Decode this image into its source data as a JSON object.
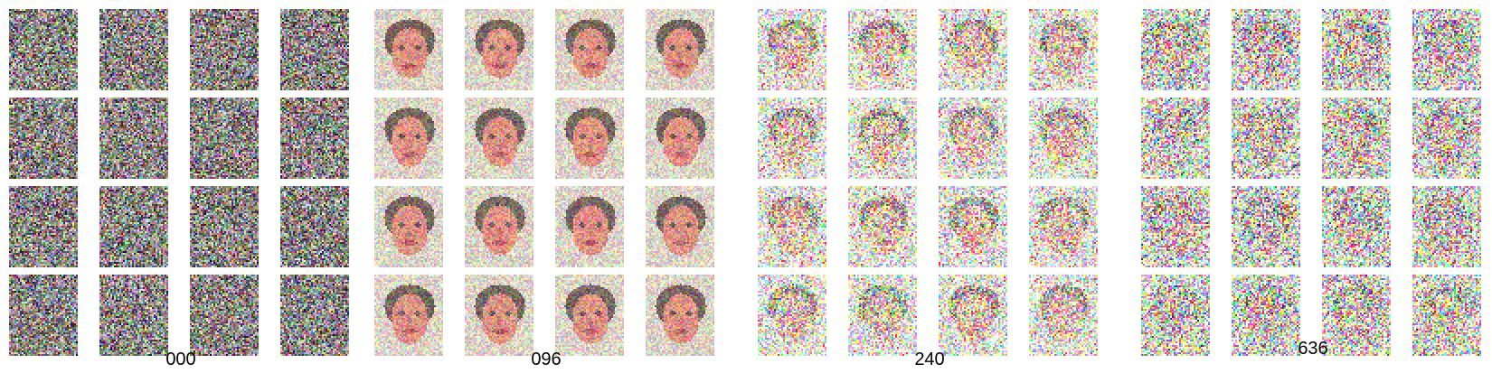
{
  "figure": {
    "panels": [
      {
        "label": "000",
        "stage": "pure-noise"
      },
      {
        "label": "096",
        "stage": "faint-face-soft-noise"
      },
      {
        "label": "240",
        "stage": "face-with-strong-noise"
      },
      {
        "label": "636",
        "stage": "saturated-noise-face-outline"
      }
    ],
    "grid": {
      "rows": 4,
      "columns": 4
    }
  }
}
